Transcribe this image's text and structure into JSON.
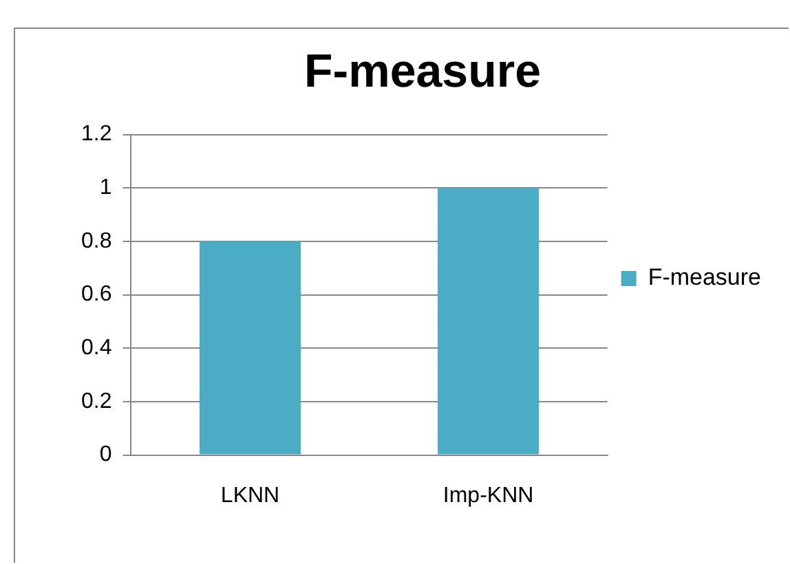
{
  "chart_data": {
    "type": "bar",
    "title": "F-measure",
    "categories": [
      "LKNN",
      "Imp-KNN"
    ],
    "series": [
      {
        "name": "F-measure",
        "color": "#4bacc6",
        "values": [
          0.8,
          1.0
        ]
      }
    ],
    "ylim": [
      0,
      1.2
    ],
    "yticks": [
      0,
      0.2,
      0.4,
      0.6,
      0.8,
      1,
      1.2
    ],
    "grid": "y",
    "legend": "right"
  }
}
